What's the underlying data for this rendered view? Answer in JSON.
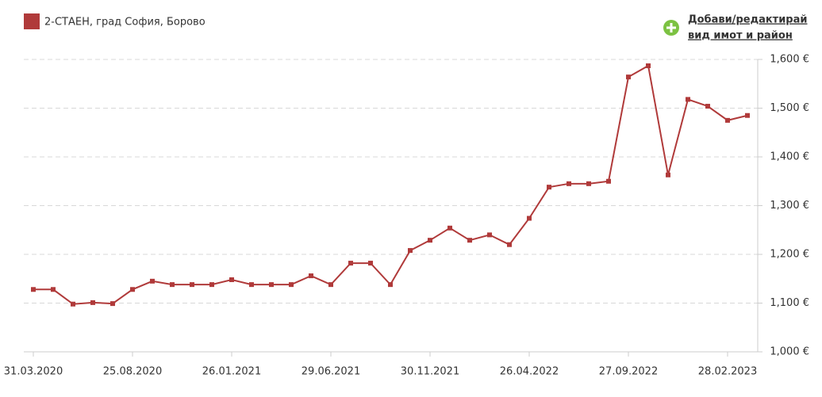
{
  "chart_data": {
    "type": "line",
    "categories": [
      "31.03.2020",
      null,
      null,
      null,
      null,
      "25.08.2020",
      null,
      null,
      null,
      null,
      "26.01.2021",
      null,
      null,
      null,
      null,
      "29.06.2021",
      null,
      null,
      null,
      null,
      "30.11.2021",
      null,
      null,
      null,
      null,
      "26.04.2022",
      null,
      null,
      null,
      null,
      "27.09.2022",
      null,
      null,
      null,
      null,
      "28.02.2023",
      null
    ],
    "series": [
      {
        "name": "2-СТАЕН, град София, Борово",
        "color": "#b03a3a",
        "values": [
          1128,
          1128,
          1098,
          1101,
          1099,
          1128,
          1145,
          1138,
          1138,
          1138,
          1148,
          1138,
          1138,
          1138,
          1156,
          1138,
          1182,
          1182,
          1138,
          1208,
          1229,
          1254,
          1229,
          1240,
          1220,
          1274,
          1338,
          1345,
          1345,
          1350,
          1564,
          1587,
          1363,
          1518,
          1504,
          1475,
          1485
        ]
      }
    ],
    "ylim": [
      1000,
      1600
    ],
    "yticks": [
      {
        "value": 1000,
        "label": "1,000 €"
      },
      {
        "value": 1100,
        "label": "1,100 €"
      },
      {
        "value": 1200,
        "label": "1,200 €"
      },
      {
        "value": 1300,
        "label": "1,300 €"
      },
      {
        "value": 1400,
        "label": "1,400 €"
      },
      {
        "value": 1500,
        "label": "1,500 €"
      },
      {
        "value": 1600,
        "label": "1,600 €"
      }
    ],
    "grid": true,
    "y_axis_side": "right"
  },
  "link": {
    "lines": [
      "Добави/редактирай",
      "вид имот и район"
    ]
  }
}
